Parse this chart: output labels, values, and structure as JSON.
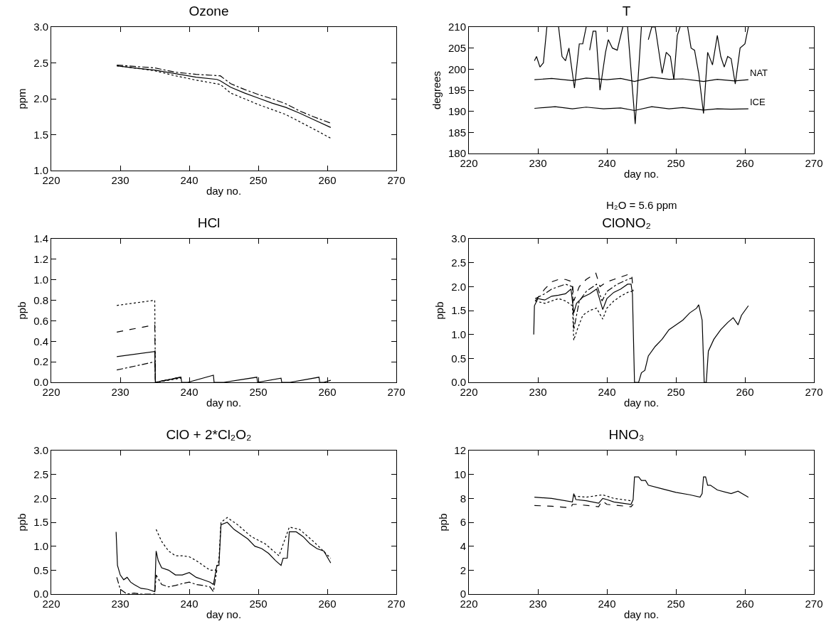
{
  "chart_data": [
    {
      "type": "line",
      "title": "Ozone",
      "xlabel": "day no.",
      "ylabel": "ppm",
      "xlim": [
        220,
        270
      ],
      "xticks": [
        220,
        230,
        240,
        250,
        260,
        270
      ],
      "ylim": [
        1,
        3
      ],
      "yticks": [
        {
          "value": 1,
          "label": "1.0"
        },
        1.5,
        {
          "value": 2,
          "label": "2.0"
        },
        2.5,
        {
          "value": 3,
          "label": "3.0"
        }
      ],
      "series": [
        {
          "color": "#000000",
          "line_style": "solid",
          "x": [
            229.5,
            232,
            235,
            238,
            241,
            244,
            244.5,
            246,
            248,
            250,
            252,
            254,
            256,
            258,
            260.5
          ],
          "values": [
            2.46,
            2.43,
            2.4,
            2.35,
            2.3,
            2.27,
            2.25,
            2.16,
            2.08,
            2.01,
            1.94,
            1.88,
            1.8,
            1.71,
            1.6
          ]
        },
        {
          "color": "#000000",
          "line_style": "dashdot",
          "x": [
            229.5,
            235,
            238,
            241,
            244.5,
            246,
            248,
            250,
            252,
            254,
            256,
            258,
            260.5
          ],
          "values": [
            2.47,
            2.43,
            2.37,
            2.34,
            2.32,
            2.21,
            2.13,
            2.06,
            2.0,
            1.93,
            1.83,
            1.75,
            1.66
          ]
        },
        {
          "color": "#000000",
          "line_style": "dotted",
          "x": [
            229.5,
            232,
            235,
            238,
            241,
            244.5,
            246,
            248,
            250,
            252,
            254,
            256,
            258,
            260.5
          ],
          "values": [
            2.46,
            2.43,
            2.39,
            2.32,
            2.26,
            2.2,
            2.08,
            2.0,
            1.92,
            1.85,
            1.78,
            1.68,
            1.58,
            1.45
          ]
        }
      ]
    },
    {
      "type": "line",
      "title": "T",
      "xlabel": "day no.",
      "ylabel": "degrees",
      "annotations": [
        "H₂O = 5.6 ppm"
      ],
      "xlim": [
        220,
        270
      ],
      "xticks": [
        220,
        230,
        240,
        250,
        260,
        270
      ],
      "ylim": [
        180,
        210
      ],
      "yticks": [
        180,
        185,
        190,
        195,
        200,
        205,
        210
      ],
      "series": [
        {
          "color": "#000000",
          "line_style": "solid",
          "x": [
            229.5,
            229.8,
            230.3,
            230.8,
            231.3,
            232.2,
            233,
            233.5,
            234,
            234.5,
            235.3,
            236,
            236.5,
            237,
            237.2,
            237.5,
            238,
            238.4,
            239,
            239.8,
            240.2,
            240.8,
            241.5,
            242.3,
            242.6,
            243,
            244.1,
            245,
            245.5,
            246,
            246.5,
            247,
            248,
            248.6,
            249.2,
            249.7,
            250.2,
            250.6,
            251.2,
            251.7,
            252.2,
            252.7,
            253.3,
            254,
            254.6,
            255.3,
            256,
            256.5,
            257,
            257.5,
            258,
            258.6,
            259.3,
            260,
            260.5
          ],
          "values": [
            202,
            203,
            200.5,
            201.5,
            210,
            null,
            210,
            203,
            202,
            205,
            195.5,
            206,
            206,
            210,
            null,
            204.5,
            209,
            209,
            195,
            204,
            207,
            205,
            204.5,
            210,
            null,
            210,
            187,
            210,
            null,
            207,
            210,
            210,
            199,
            204,
            203,
            197.5,
            208,
            210,
            null,
            210,
            205,
            204.5,
            199,
            189.5,
            204,
            201,
            208,
            203,
            200.5,
            203,
            202.5,
            196.5,
            205,
            206,
            210
          ]
        },
        {
          "name": "NAT",
          "color": "#000000",
          "line_style": "solid",
          "x": [
            229.5,
            232,
            235,
            237,
            240,
            242,
            244,
            246.5,
            249,
            251,
            254,
            256,
            258.5,
            260.5
          ],
          "values": [
            197.5,
            197.8,
            197.3,
            197.9,
            197.5,
            197.8,
            197.1,
            198.1,
            197.6,
            197.7,
            197.1,
            197.6,
            197.2,
            197.5
          ]
        },
        {
          "name": "ICE",
          "color": "#000000",
          "line_style": "solid",
          "x": [
            229.5,
            232.5,
            235,
            237,
            239.5,
            242,
            244,
            246.5,
            249,
            251,
            254,
            256,
            258,
            260.5
          ],
          "values": [
            190.7,
            191.1,
            190.6,
            191.0,
            190.6,
            190.8,
            190.2,
            191.1,
            190.6,
            190.9,
            190.3,
            190.6,
            190.5,
            190.6
          ]
        }
      ]
    },
    {
      "type": "line",
      "title": "HCl",
      "xlabel": "day no.",
      "ylabel": "ppb",
      "xlim": [
        220,
        270
      ],
      "xticks": [
        220,
        230,
        240,
        250,
        260,
        270
      ],
      "ylim": [
        0,
        1.4
      ],
      "yticks": [
        {
          "value": 0,
          "label": "0.0"
        },
        0.2,
        0.4,
        0.6,
        0.8,
        {
          "value": 1,
          "label": "1.0"
        },
        1.2,
        1.4
      ],
      "series": [
        {
          "color": "#000000",
          "line_style": "solid",
          "x": [
            229.5,
            235,
            235.1,
            238.8,
            238.9,
            239.8,
            243.5,
            243.6,
            245,
            249.8,
            249.9,
            253.3,
            253.4,
            254.6,
            258.8,
            258.9,
            259.5,
            260.5
          ],
          "values": [
            0.25,
            0.3,
            0,
            0.05,
            0,
            0,
            0.07,
            0,
            0,
            0.05,
            0,
            0.04,
            0,
            0,
            0.05,
            0,
            0,
            0.02
          ]
        },
        {
          "color": "#000000",
          "line_style": "dotted",
          "x": [
            229.5,
            235,
            235.1,
            238.8
          ],
          "values": [
            0.75,
            0.8,
            0,
            0.04
          ]
        },
        {
          "color": "#000000",
          "line_style": "dashed",
          "x": [
            229.5,
            235,
            235.1,
            238.8
          ],
          "values": [
            0.49,
            0.56,
            0,
            0.05
          ]
        },
        {
          "color": "#000000",
          "line_style": "dashdot",
          "x": [
            229.5,
            235,
            235.1,
            238.8
          ],
          "values": [
            0.12,
            0.2,
            0,
            0.05
          ]
        }
      ]
    },
    {
      "type": "line",
      "title": "ClONO₂",
      "xlabel": "day no.",
      "ylabel": "ppb",
      "xlim": [
        220,
        270
      ],
      "xticks": [
        220,
        230,
        240,
        250,
        260,
        270
      ],
      "ylim": [
        0,
        3
      ],
      "yticks": [
        {
          "value": 0,
          "label": "0.0"
        },
        0.5,
        {
          "value": 1,
          "label": "1.0"
        },
        1.5,
        {
          "value": 2,
          "label": "2.0"
        },
        2.5,
        {
          "value": 3,
          "label": "3.0"
        }
      ],
      "series": [
        {
          "color": "#000000",
          "line_style": "solid",
          "x": [
            229.4,
            229.5,
            230,
            231,
            232,
            233,
            234,
            234.8,
            235.2,
            235.6,
            236.5,
            237.5,
            238.5,
            239.4,
            240,
            241,
            242,
            243,
            243.5,
            243.7,
            244,
            244.6,
            245,
            245.5,
            246,
            247,
            248,
            249,
            250,
            251,
            252,
            253,
            253.3,
            253.8,
            254.1,
            254.4,
            254.7,
            255.5,
            256.5,
            257.5,
            258.3,
            259,
            259.5,
            260.5
          ],
          "values": [
            1.0,
            1.6,
            1.75,
            1.72,
            1.8,
            1.82,
            1.85,
            1.95,
            1.45,
            1.65,
            1.78,
            1.85,
            1.95,
            1.52,
            1.75,
            1.88,
            1.95,
            2.05,
            2.05,
            1.85,
            0,
            0,
            0.2,
            0.25,
            0.55,
            0.75,
            0.9,
            1.1,
            1.2,
            1.3,
            1.45,
            1.55,
            1.62,
            1.3,
            0,
            0,
            0.65,
            0.9,
            1.1,
            1.25,
            1.35,
            1.2,
            1.4,
            1.6
          ]
        },
        {
          "color": "#000000",
          "line_style": "dashed",
          "x": [
            229.6,
            231,
            232,
            233,
            234,
            235,
            235.2,
            236,
            237,
            238.4,
            239,
            240,
            241,
            242,
            243,
            243.6,
            243.8
          ],
          "values": [
            1.7,
            1.95,
            2.1,
            2.15,
            2.15,
            2.1,
            1.7,
            2.0,
            2.15,
            2.28,
            2.0,
            2.1,
            2.15,
            2.2,
            2.25,
            2.25,
            1.9
          ]
        },
        {
          "color": "#000000",
          "line_style": "dotted",
          "x": [
            229.6,
            231,
            232,
            233,
            234,
            235,
            235.2,
            235.7,
            236.5,
            237.5,
            238.5,
            239.4,
            240,
            241,
            242,
            243,
            243.6
          ],
          "values": [
            1.7,
            1.65,
            1.7,
            1.75,
            1.7,
            1.6,
            0.88,
            1.1,
            1.4,
            1.5,
            1.55,
            1.32,
            1.55,
            1.7,
            1.8,
            1.88,
            1.9
          ]
        },
        {
          "color": "#000000",
          "line_style": "dashdot",
          "x": [
            229.6,
            231,
            232,
            234,
            235,
            235.2,
            236,
            237,
            238.5,
            239.3,
            240,
            241.5,
            243,
            243.6
          ],
          "values": [
            1.75,
            1.85,
            1.95,
            2.05,
            2.0,
            1.1,
            1.7,
            1.9,
            2.05,
            1.7,
            1.9,
            2.05,
            2.15,
            2.18
          ]
        }
      ]
    },
    {
      "type": "line",
      "title": "ClO + 2*Cl₂O₂",
      "xlabel": "day no.",
      "ylabel": "ppb",
      "xlim": [
        220,
        270
      ],
      "xticks": [
        220,
        230,
        240,
        250,
        260,
        270
      ],
      "ylim": [
        0,
        3
      ],
      "yticks": [
        {
          "value": 0,
          "label": "0.0"
        },
        0.5,
        {
          "value": 1,
          "label": "1.0"
        },
        1.5,
        {
          "value": 2,
          "label": "2.0"
        },
        2.5,
        {
          "value": 3,
          "label": "3.0"
        }
      ],
      "series": [
        {
          "color": "#000000",
          "line_style": "solid",
          "x": [
            229.4,
            229.6,
            230,
            230.5,
            231,
            231.5,
            232,
            233,
            234,
            235,
            235.2,
            235.5,
            236,
            237,
            238,
            239,
            240,
            241,
            242,
            243,
            243.5,
            244,
            244.3,
            244.6,
            245.5,
            246.5,
            247.5,
            248.5,
            249.5,
            250.5,
            251.5,
            252.5,
            253.3,
            253.6,
            254.2,
            254.5,
            255.5,
            256.5,
            257.5,
            258.5,
            259.5,
            260.5
          ],
          "values": [
            1.3,
            0.6,
            0.4,
            0.3,
            0.35,
            0.25,
            0.2,
            0.12,
            0.1,
            0.05,
            0.9,
            0.7,
            0.55,
            0.5,
            0.4,
            0.4,
            0.45,
            0.35,
            0.3,
            0.25,
            0.2,
            0.6,
            0.6,
            1.45,
            1.5,
            1.35,
            1.25,
            1.15,
            1.0,
            0.95,
            0.85,
            0.7,
            0.6,
            0.75,
            0.75,
            1.3,
            1.3,
            1.2,
            1.05,
            0.95,
            0.9,
            0.65
          ]
        },
        {
          "color": "#000000",
          "line_style": "dotted",
          "x": [
            235.2,
            236,
            237,
            238,
            239,
            240,
            241,
            242,
            243,
            243.8,
            244.3,
            244.6,
            245.5,
            247,
            249,
            251,
            253,
            254.5,
            256,
            258,
            260.5
          ],
          "values": [
            1.35,
            1.1,
            0.9,
            0.8,
            0.8,
            0.78,
            0.7,
            0.6,
            0.5,
            0.5,
            0.7,
            1.5,
            1.6,
            1.45,
            1.2,
            1.05,
            0.8,
            1.4,
            1.35,
            1.1,
            0.75
          ]
        },
        {
          "color": "#000000",
          "line_style": "dashdot",
          "x": [
            229.5,
            230,
            231,
            232,
            233,
            234,
            235,
            235.2,
            236,
            237,
            238,
            239,
            240,
            241,
            242,
            243,
            243.5,
            244
          ],
          "values": [
            0.35,
            0.1,
            0.0,
            0.02,
            0.0,
            0.0,
            0.0,
            0.4,
            0.2,
            0.15,
            0.18,
            0.22,
            0.25,
            0.2,
            0.18,
            0.15,
            0.05,
            0.5
          ]
        }
      ]
    },
    {
      "type": "line",
      "title": "HNO₃",
      "xlabel": "day no.",
      "ylabel": "ppb",
      "xlim": [
        220,
        270
      ],
      "xticks": [
        220,
        230,
        240,
        250,
        260,
        270
      ],
      "ylim": [
        0,
        12
      ],
      "yticks": [
        0,
        2,
        4,
        6,
        8,
        10,
        12
      ],
      "series": [
        {
          "color": "#000000",
          "line_style": "solid",
          "x": [
            229.5,
            232,
            235,
            235.2,
            235.5,
            237,
            238.8,
            239.4,
            240,
            241,
            243.5,
            243.8,
            244,
            244.6,
            245,
            245.6,
            246,
            248,
            250,
            252,
            253.5,
            253.8,
            254,
            254.3,
            254.6,
            255,
            256,
            258,
            259,
            260.5
          ],
          "values": [
            8.1,
            8.0,
            7.7,
            8.4,
            7.9,
            7.8,
            7.6,
            8.0,
            7.9,
            7.7,
            7.5,
            7.9,
            9.8,
            9.8,
            9.5,
            9.5,
            9.1,
            8.8,
            8.5,
            8.3,
            8.1,
            8.4,
            9.8,
            9.8,
            9.1,
            9.1,
            8.7,
            8.4,
            8.6,
            8.1
          ]
        },
        {
          "color": "#000000",
          "line_style": "dotted",
          "x": [
            235.2,
            237,
            239.4,
            241,
            243.5
          ],
          "values": [
            8.2,
            8.1,
            8.3,
            8.0,
            7.8
          ]
        },
        {
          "color": "#000000",
          "line_style": "dashed",
          "x": [
            229.5,
            232,
            234.8,
            235,
            235.6,
            238.8,
            239.3,
            240,
            243.5,
            243.8
          ],
          "values": [
            7.4,
            7.35,
            7.2,
            7.5,
            7.5,
            7.3,
            7.8,
            7.5,
            7.3,
            7.5
          ]
        }
      ]
    }
  ]
}
